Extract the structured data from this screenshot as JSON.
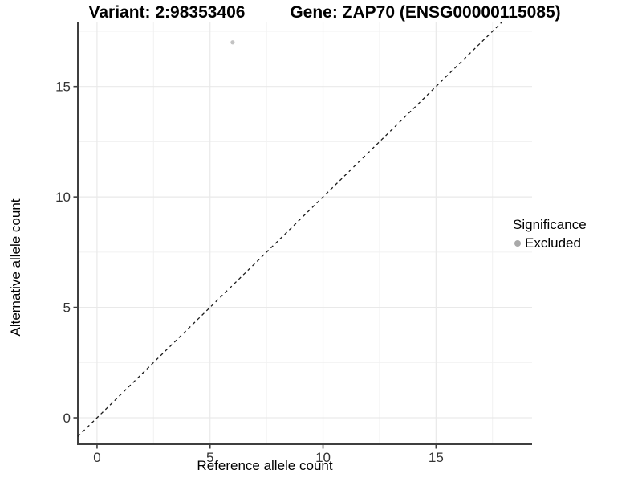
{
  "header": {
    "title_left": "Variant: 2:98353406",
    "title_right": "Gene: ZAP70 (ENSG00000115085)"
  },
  "axes": {
    "x_label": "Reference allele count",
    "y_label": "Alternative allele count"
  },
  "legend": {
    "title": "Significance",
    "entries": [
      {
        "label": "Excluded",
        "color": "#a9a9a9"
      }
    ]
  },
  "chart_data": {
    "type": "scatter",
    "title": "Variant: 2:98353406   Gene: ZAP70 (ENSG00000115085)",
    "xlabel": "Reference allele count",
    "ylabel": "Alternative allele count",
    "xlim": [
      -0.85,
      19.25
    ],
    "ylim": [
      -1.2,
      17.9
    ],
    "x_ticks": [
      0,
      5,
      10,
      15
    ],
    "y_ticks": [
      0,
      5,
      10,
      15
    ],
    "x_minor_ticks": [
      2.5,
      7.5,
      12.5,
      17.5
    ],
    "y_minor_ticks": [
      2.5,
      7.5,
      12.5,
      17.5
    ],
    "grid": true,
    "legend_position": "right",
    "series": [
      {
        "name": "Excluded",
        "color": "#c3c3c3",
        "points": [
          {
            "x": 6,
            "y": 17
          }
        ]
      }
    ],
    "reference_line": {
      "type": "identity y=x",
      "style": "dashed",
      "color": "#1a1a1a"
    }
  },
  "colors": {
    "grid_major": "#e9e9e9",
    "grid_minor": "#f1f1f1",
    "axis_line": "#3f3f3f",
    "tick_text": "#333333"
  }
}
